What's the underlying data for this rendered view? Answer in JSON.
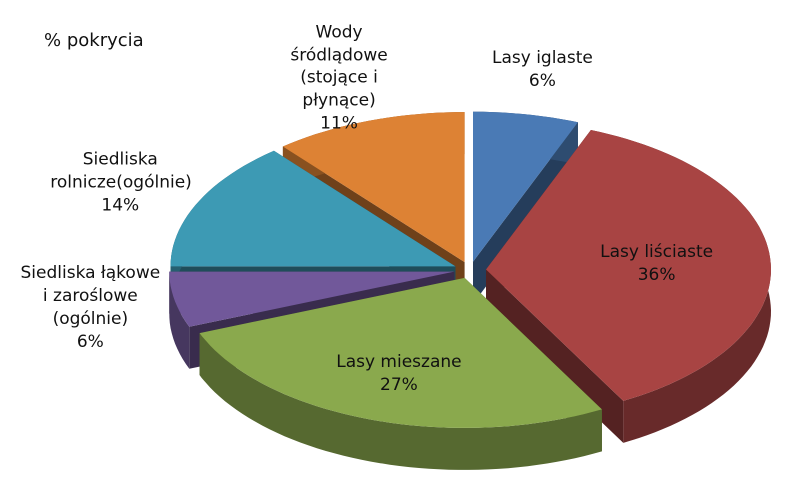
{
  "chart_data": {
    "type": "pie3d",
    "title": "% pokrycia",
    "categories": [
      "Lasy iglaste",
      "Lasy liściaste",
      "Lasy mieszane",
      "Siedliska łąkowe i zaroślowe (ogólnie)",
      "Siedliska rolnicze(ogólnie)",
      "Wody śródlądowe (stojące i płynące)"
    ],
    "values": [
      6,
      36,
      27,
      6,
      14,
      11
    ],
    "value_labels": [
      "6%",
      "36%",
      "27%",
      "6%",
      "14%",
      "11%"
    ],
    "colors": [
      "#4a7ab5",
      "#a84443",
      "#8aa94d",
      "#71589a",
      "#3d9ab4",
      "#dd8234"
    ]
  }
}
